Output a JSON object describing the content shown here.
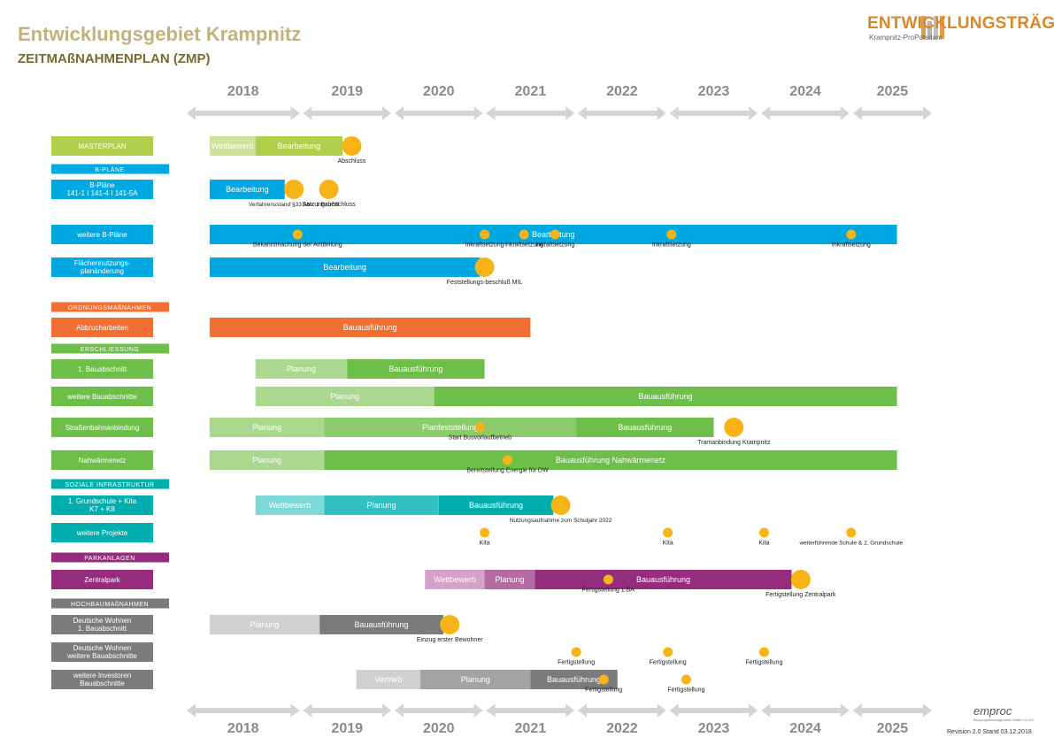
{
  "header": {
    "title": "Entwicklungsgebiet Krampnitz",
    "subtitle": "ZEITMAßNAHMENPLAN (ZMP)"
  },
  "logo": {
    "title": "ENTWICKLUNGSTRÄGER",
    "subtitle": "Krampnitz-ProPotsdam"
  },
  "footer": {
    "brand": "emproc",
    "brand_sub": "Bauprojektmanagement GmbH Co KG",
    "revision": "Revision 2.0 Stand 03.12.2018"
  },
  "colors": {
    "masterplan_light": "#cfe29a",
    "masterplan": "#b1cf4a",
    "bplan": "#00a8e1",
    "ordnung": "#f07033",
    "erschl_light": "#abd88f",
    "erschl": "#6dbf4a",
    "sozial_light": "#7ed8d8",
    "sozial_mid": "#34c0c1",
    "sozial": "#00aeae",
    "park_light": "#d6a0c8",
    "park_mid": "#b46ba1",
    "park": "#962c7e",
    "hoch_light": "#d0d0d0",
    "hoch_mid": "#a3a3a3",
    "hoch": "#7b7b7b",
    "milestone": "#f8b416",
    "arrow": "#d4d4d4",
    "yearText": "#8a8a8a"
  },
  "chart_data": {
    "type": "gantt",
    "x_unit": "years",
    "xlim": [
      2017.75,
      2025.9
    ],
    "years": [
      {
        "label": "2018",
        "start": 2018.0,
        "end": 2019.0
      },
      {
        "label": "2019",
        "start": 2019.0,
        "end": 2020.0
      },
      {
        "label": "2020",
        "start": 2020.0,
        "end": 2021.0
      },
      {
        "label": "2021",
        "start": 2021.0,
        "end": 2022.0
      },
      {
        "label": "2022",
        "start": 2022.0,
        "end": 2023.0
      },
      {
        "label": "2023",
        "start": 2023.0,
        "end": 2024.0
      },
      {
        "label": "2024",
        "start": 2024.0,
        "end": 2025.0
      },
      {
        "label": "2025",
        "start": 2025.0,
        "end": 2026.0
      }
    ],
    "sections": [
      {
        "label": "B-PLÄNE",
        "color": "bplan",
        "row": 1
      },
      {
        "label": "ORDNUNGSMAßNAHMEN",
        "color": "ordnung",
        "row": 5
      },
      {
        "label": "ERSCHLIESSUNG",
        "color": "erschl",
        "row": 7
      },
      {
        "label": "SOZIALE INFRASTRUKTUR",
        "color": "sozial",
        "row": 12
      },
      {
        "label": "PARKANLAGEN",
        "color": "park",
        "row": 15
      },
      {
        "label": "HOCHBAUMAßNAHMEN",
        "color": "hoch",
        "row": 17
      }
    ],
    "rows": [
      {
        "label": "MASTERPLAN",
        "color": "masterplan",
        "row": 0,
        "bars": [
          {
            "label": "Wettbewerb",
            "start": 2018.0,
            "end": 2018.5,
            "color": "masterplan_light"
          },
          {
            "label": "Bearbeitung",
            "start": 2018.5,
            "end": 2019.45,
            "color": "masterplan"
          }
        ],
        "milestones": [
          {
            "x": 2019.55,
            "size": "large",
            "label": "Abschluss"
          }
        ]
      },
      {
        "label": "B-Pläne 141-1 I 141-4 I 141-5A",
        "color": "bplan",
        "row": 2,
        "bars": [
          {
            "label": "Bearbeitung",
            "start": 2018.0,
            "end": 2018.82,
            "color": "bplan"
          }
        ],
        "milestones": [
          {
            "x": 2018.92,
            "size": "large",
            "label": "Verfahrensstand §33 Abs. 1 BauGB"
          },
          {
            "x": 2019.3,
            "size": "large",
            "label": "Satzungsbeschluss"
          }
        ]
      },
      {
        "label": "weitere B-Pläne",
        "color": "bplan",
        "row": 3,
        "bars": [
          {
            "label": "Bearbeitung",
            "start": 2018.0,
            "end": 2025.5,
            "color": "bplan"
          }
        ],
        "milestones": [
          {
            "x": 2018.96,
            "size": "small",
            "label": "Bekanntmachung der Antiteilung"
          },
          {
            "x": 2021.0,
            "size": "small",
            "label": "Inkraftsetzung"
          },
          {
            "x": 2021.43,
            "size": "small",
            "label": "Inkraftsetzung"
          },
          {
            "x": 2021.77,
            "size": "small",
            "label": "Inkraftsetzung"
          },
          {
            "x": 2023.04,
            "size": "small",
            "label": "Inkraftsetzung"
          },
          {
            "x": 2025.0,
            "size": "small",
            "label": "Inkraftsetzung"
          }
        ]
      },
      {
        "label": "Flächennutzungs-planänderung",
        "color": "bplan",
        "row": 4,
        "bars": [
          {
            "label": "Bearbeitung",
            "start": 2018.0,
            "end": 2020.95,
            "color": "bplan"
          }
        ],
        "milestones": [
          {
            "x": 2021.0,
            "size": "large",
            "label": "Feststellungs-beschluß MIL"
          }
        ]
      },
      {
        "label": "Abbrucharbeiten",
        "color": "ordnung",
        "row": 6,
        "bars": [
          {
            "label": "Bauausführung",
            "start": 2018.0,
            "end": 2021.5,
            "color": "ordnung"
          }
        ],
        "milestones": []
      },
      {
        "label": "1. Bauabschnitt",
        "color": "erschl",
        "row": 8,
        "bars": [
          {
            "label": "Planung",
            "start": 2018.5,
            "end": 2019.5,
            "color": "erschl_light"
          },
          {
            "label": "Bauausführung",
            "start": 2019.5,
            "end": 2021.0,
            "color": "erschl"
          }
        ],
        "milestones": []
      },
      {
        "label": "weitere Bauabschnitte",
        "color": "erschl",
        "row": 9,
        "bars": [
          {
            "label": "Planung",
            "start": 2018.5,
            "end": 2020.45,
            "color": "erschl_light"
          },
          {
            "label": "Bauausführung",
            "start": 2020.45,
            "end": 2025.5,
            "color": "erschl"
          }
        ],
        "milestones": []
      },
      {
        "label": "Straßenbahnanbindung",
        "color": "erschl",
        "row": 10,
        "bars": [
          {
            "label": "Planung",
            "start": 2018.0,
            "end": 2019.25,
            "color": "erschl_light"
          },
          {
            "label": "Planfeststellung",
            "start": 2019.25,
            "end": 2022.0,
            "color": "erschl_mid"
          },
          {
            "label": "Bauausführung",
            "start": 2022.0,
            "end": 2023.5,
            "color": "erschl"
          }
        ],
        "milestones": [
          {
            "x": 2020.95,
            "size": "small",
            "label": "Start Busvorlaufbetrieb"
          },
          {
            "x": 2023.72,
            "size": "large",
            "label": "Tramanbindung Krampnitz"
          }
        ]
      },
      {
        "label": "Nahwärmenetz",
        "color": "erschl",
        "row": 11,
        "bars": [
          {
            "label": "Planung",
            "start": 2018.0,
            "end": 2019.25,
            "color": "erschl_light"
          },
          {
            "label": "Bauausführung        Nahwärmenetz",
            "start": 2019.25,
            "end": 2025.5,
            "color": "erschl"
          }
        ],
        "milestones": [
          {
            "x": 2021.25,
            "size": "small",
            "label": "Bereitstellung Energie für DW"
          }
        ]
      },
      {
        "label": "1. Grundschule + Kita K7 + K8",
        "color": "sozial",
        "row": 13,
        "bars": [
          {
            "label": "Wettbewerb",
            "start": 2018.5,
            "end": 2019.25,
            "color": "sozial_light"
          },
          {
            "label": "Planung",
            "start": 2019.25,
            "end": 2020.5,
            "color": "sozial_mid"
          },
          {
            "label": "Bauausführung",
            "start": 2020.5,
            "end": 2021.75,
            "color": "sozial"
          }
        ],
        "milestones": [
          {
            "x": 2021.83,
            "size": "large",
            "label": "Nutzungsaufnahme zum Schuljahr 2022"
          }
        ]
      },
      {
        "label": "weitere Projekte",
        "color": "sozial",
        "row": 14,
        "bars": [],
        "milestones": [
          {
            "x": 2021.0,
            "size": "small",
            "label": "Kita"
          },
          {
            "x": 2023.0,
            "size": "small",
            "label": "Kita"
          },
          {
            "x": 2024.05,
            "size": "small",
            "label": "Kita"
          },
          {
            "x": 2025.0,
            "size": "small",
            "label": "weiterführende Schule & 2. Grundschule"
          }
        ]
      },
      {
        "label": "Zentralpark",
        "color": "park",
        "row": 16,
        "bars": [
          {
            "label": "Wettbewerb",
            "start": 2020.35,
            "end": 2021.0,
            "color": "park_light"
          },
          {
            "label": "Planung",
            "start": 2021.0,
            "end": 2021.55,
            "color": "park_mid"
          },
          {
            "label": "Bauausführung",
            "start": 2021.55,
            "end": 2024.35,
            "color": "park"
          }
        ],
        "milestones": [
          {
            "x": 2022.35,
            "size": "small",
            "label": "Fertigstellung 1.BA"
          },
          {
            "x": 2024.45,
            "size": "large",
            "label": "Fertigstellung Zentralpark"
          }
        ]
      },
      {
        "label": "Deutsche Wohnen 1. Bauabschnitt",
        "color": "hoch",
        "row": 18,
        "bars": [
          {
            "label": "Planung",
            "start": 2018.0,
            "end": 2019.2,
            "color": "hoch_light"
          },
          {
            "label": "Bauausführung",
            "start": 2019.2,
            "end": 2020.55,
            "color": "hoch"
          }
        ],
        "milestones": [
          {
            "x": 2020.62,
            "size": "large",
            "label": "Einzug erster Bewohner"
          }
        ]
      },
      {
        "label": "Deutsche Wohnen weitere Bauabschnitte",
        "color": "hoch",
        "row": 19,
        "bars": [],
        "milestones": [
          {
            "x": 2022.0,
            "size": "small",
            "label": "Fertigstellung"
          },
          {
            "x": 2023.0,
            "size": "small",
            "label": "Fertigstellung"
          },
          {
            "x": 2024.05,
            "size": "small",
            "label": "Fertigstellung"
          }
        ]
      },
      {
        "label": "weitere Investoren Bauabschnitte",
        "color": "hoch",
        "row": 20,
        "bars": [
          {
            "label": "Vertrieb",
            "start": 2019.6,
            "end": 2020.3,
            "color": "hoch_light"
          },
          {
            "label": "Planung",
            "start": 2020.3,
            "end": 2021.5,
            "color": "hoch_mid"
          },
          {
            "label": "Bauausführung",
            "start": 2021.5,
            "end": 2022.45,
            "color": "hoch"
          }
        ],
        "milestones": [
          {
            "x": 2022.3,
            "size": "small",
            "label": "Fertigstellung"
          },
          {
            "x": 2023.2,
            "size": "small",
            "label": "Fertigstellung"
          }
        ]
      }
    ]
  }
}
